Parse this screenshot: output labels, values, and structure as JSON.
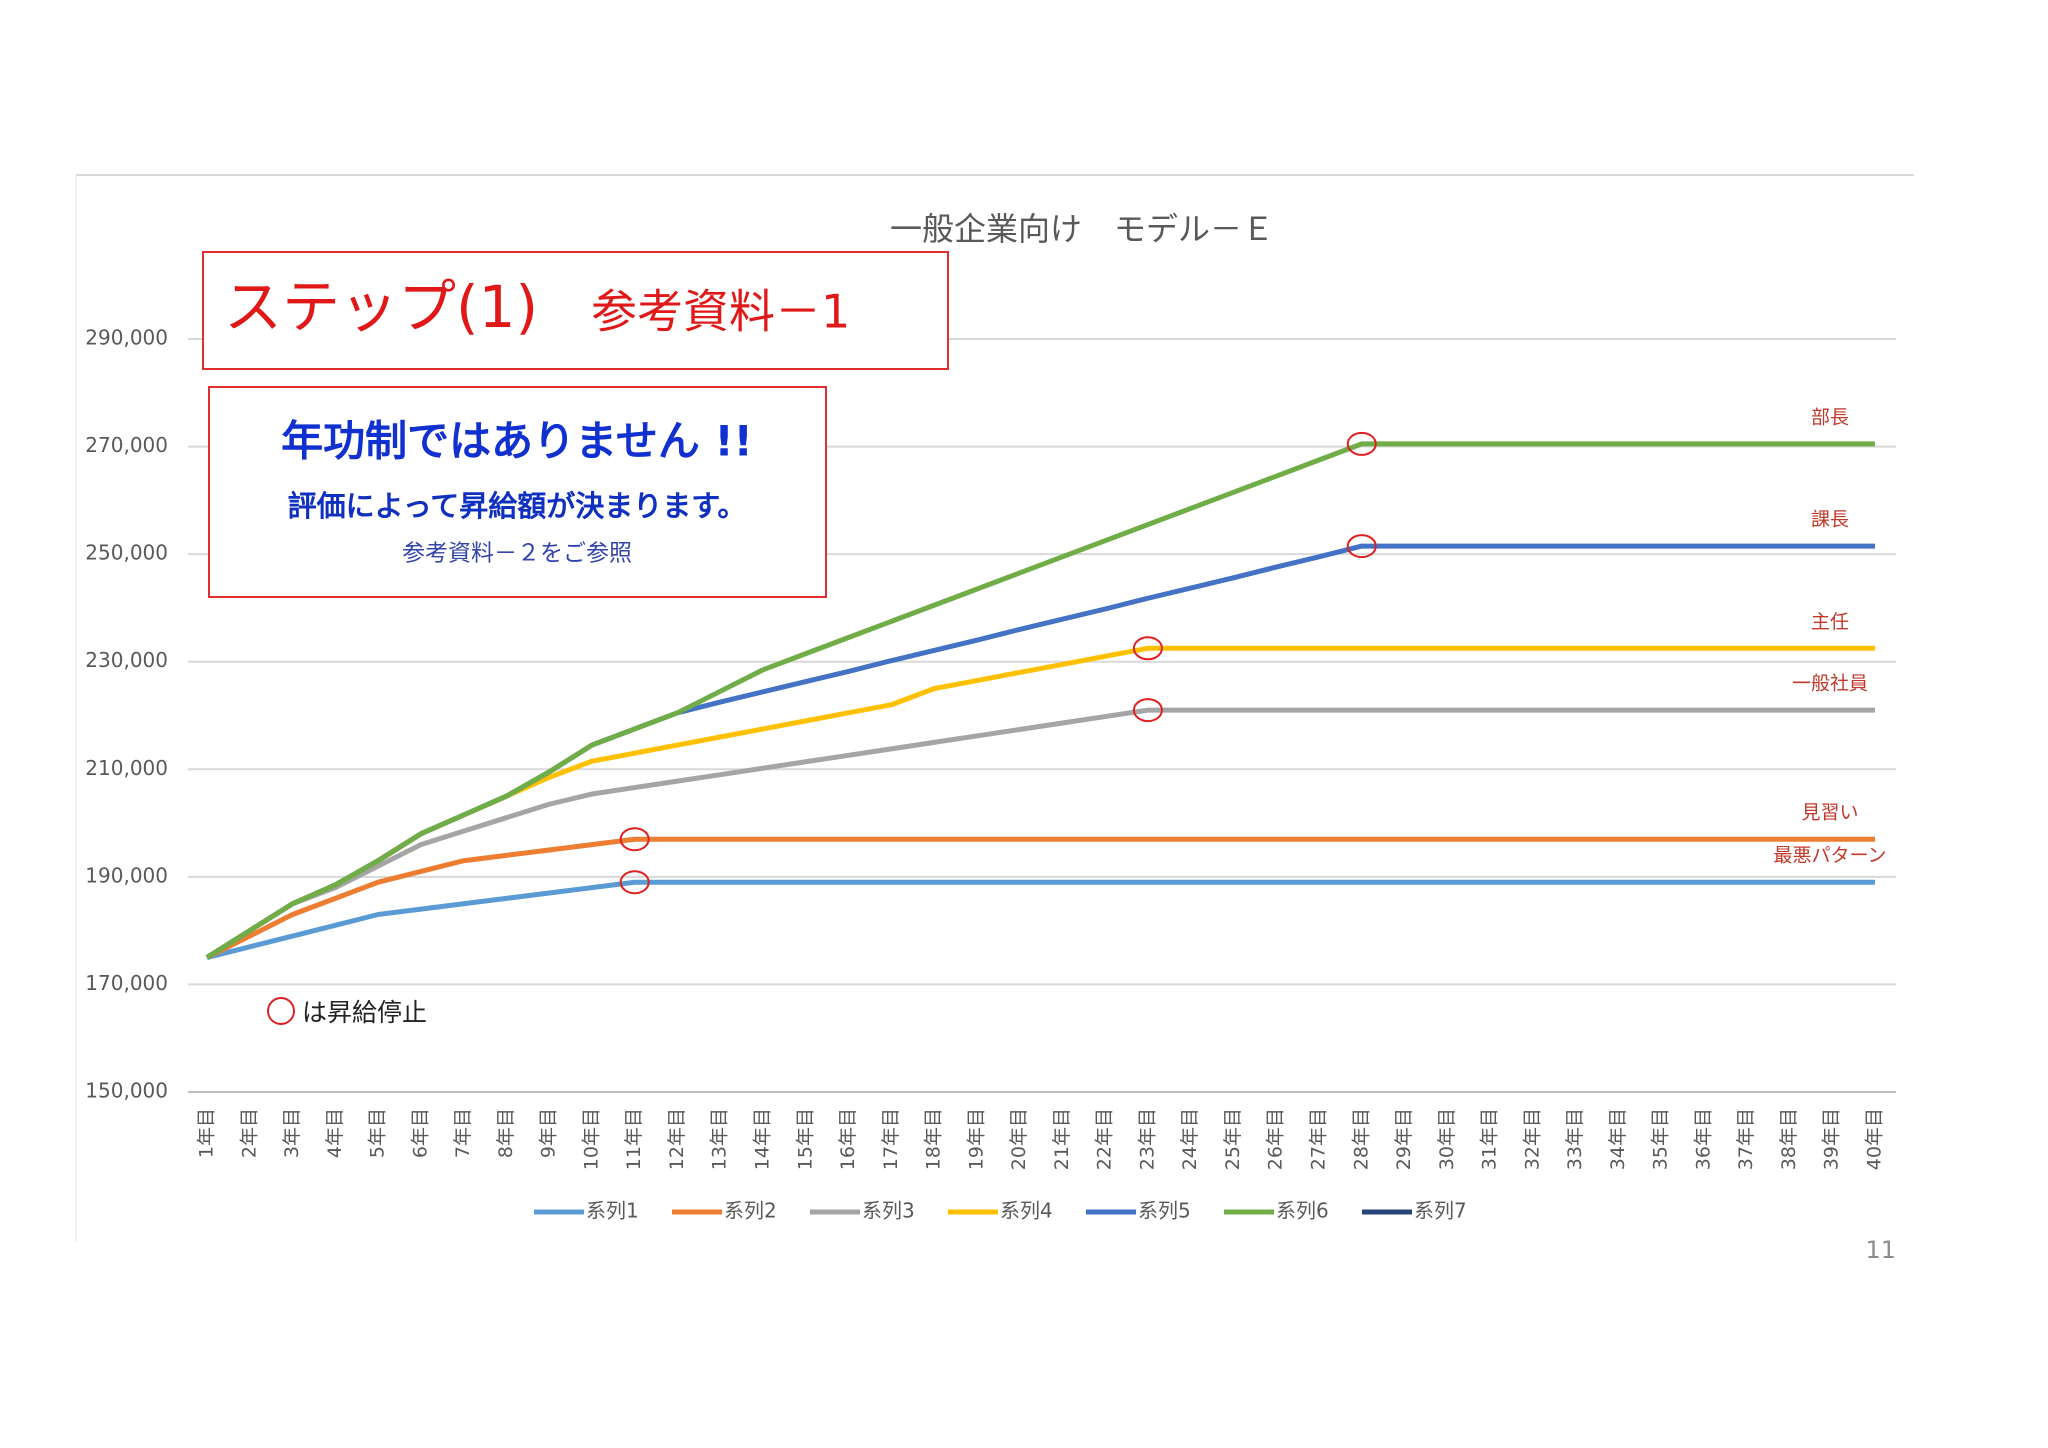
{
  "chart_data": {
    "type": "line",
    "title": "一般企業向け　モデル－Ｅ",
    "step_title": "ステップ(1)",
    "step_subtitle": "参考資料－1",
    "note_heading": "年功制ではありません !!",
    "note_text": "評価によって昇給額が決まります。",
    "note_reference": "参考資料－２をご参照",
    "marker_legend": "は昇給停止",
    "page_number": "11",
    "categories": [
      "1年目",
      "2年目",
      "3年目",
      "4年目",
      "5年目",
      "6年目",
      "7年目",
      "8年目",
      "9年目",
      "10年目",
      "11年目",
      "12年目",
      "13年目",
      "14年目",
      "15年目",
      "16年目",
      "17年目",
      "18年目",
      "19年目",
      "20年目",
      "21年目",
      "22年目",
      "23年目",
      "24年目",
      "25年目",
      "26年目",
      "27年目",
      "28年目",
      "29年目",
      "30年目",
      "31年目",
      "32年目",
      "33年目",
      "34年目",
      "35年目",
      "36年目",
      "37年目",
      "38年目",
      "39年目",
      "40年目"
    ],
    "ylim": [
      150000,
      290000
    ],
    "yticks": [
      {
        "value": 150000,
        "label": "150,000"
      },
      {
        "value": 170000,
        "label": "170,000"
      },
      {
        "value": 190000,
        "label": "190,000"
      },
      {
        "value": 210000,
        "label": "210,000"
      },
      {
        "value": 230000,
        "label": "230,000"
      },
      {
        "value": 250000,
        "label": "250,000"
      },
      {
        "value": 270000,
        "label": "270,000"
      },
      {
        "value": 290000,
        "label": "290,000"
      }
    ],
    "grid": true,
    "legend": "bottom",
    "series": [
      {
        "name": "系列1",
        "label": "最悪パターン",
        "color": "#5b9bd5",
        "values": [
          175000,
          177000,
          179000,
          181000,
          183000,
          184000,
          185000,
          186000,
          187000,
          188000,
          189000,
          189000,
          189000,
          189000,
          189000,
          189000,
          189000,
          189000,
          189000,
          189000,
          189000,
          189000,
          189000,
          189000,
          189000,
          189000,
          189000,
          189000,
          189000,
          189000,
          189000,
          189000,
          189000,
          189000,
          189000,
          189000,
          189000,
          189000,
          189000,
          189000
        ]
      },
      {
        "name": "系列2",
        "label": "見習い",
        "color": "#ed7d31",
        "values": [
          175000,
          179000,
          183000,
          186000,
          189000,
          191000,
          193000,
          194000,
          195000,
          196000,
          197000,
          197000,
          197000,
          197000,
          197000,
          197000,
          197000,
          197000,
          197000,
          197000,
          197000,
          197000,
          197000,
          197000,
          197000,
          197000,
          197000,
          197000,
          197000,
          197000,
          197000,
          197000,
          197000,
          197000,
          197000,
          197000,
          197000,
          197000,
          197000,
          197000
        ]
      },
      {
        "name": "系列3",
        "label": "一般社員",
        "color": "#a5a5a5",
        "values": [
          175000,
          180000,
          185000,
          188000,
          192000,
          196000,
          198500,
          201000,
          203500,
          205400,
          206600,
          207800,
          209000,
          210200,
          211400,
          212600,
          213800,
          215000,
          216200,
          217400,
          218600,
          219800,
          221000,
          221000,
          221000,
          221000,
          221000,
          221000,
          221000,
          221000,
          221000,
          221000,
          221000,
          221000,
          221000,
          221000,
          221000,
          221000,
          221000,
          221000
        ]
      },
      {
        "name": "系列4",
        "label": "主任",
        "color": "#ffc000",
        "values": [
          175000,
          180000,
          185000,
          188500,
          193000,
          198000,
          201500,
          205000,
          208500,
          211500,
          213000,
          214500,
          216000,
          217500,
          219000,
          220500,
          222000,
          225000,
          226500,
          228000,
          229500,
          231000,
          232500,
          232500,
          232500,
          232500,
          232500,
          232500,
          232500,
          232500,
          232500,
          232500,
          232500,
          232500,
          232500,
          232500,
          232500,
          232500,
          232500,
          232500
        ]
      },
      {
        "name": "系列5",
        "label": "課長",
        "color": "#4472c4",
        "values": [
          175000,
          180000,
          185000,
          188500,
          193000,
          198000,
          201500,
          205000,
          209500,
          214500,
          217500,
          220500,
          222500,
          224400,
          226300,
          228200,
          230200,
          232100,
          234000,
          236000,
          237900,
          239800,
          241800,
          243700,
          245600,
          247600,
          249500,
          251500,
          251500,
          251500,
          251500,
          251500,
          251500,
          251500,
          251500,
          251500,
          251500,
          251500,
          251500,
          251500
        ]
      },
      {
        "name": "系列6",
        "label": "部長",
        "color": "#70ad47",
        "values": [
          175000,
          180000,
          185000,
          188500,
          193000,
          198000,
          201500,
          205000,
          209500,
          214500,
          217500,
          220500,
          224500,
          228500,
          231500,
          234500,
          237500,
          240500,
          243500,
          246500,
          249500,
          252500,
          255500,
          258500,
          261500,
          264500,
          267500,
          270500,
          270500,
          270500,
          270500,
          270500,
          270500,
          270500,
          270500,
          270500,
          270500,
          270500,
          270500,
          270500
        ]
      },
      {
        "name": "系列7",
        "color": "#264478"
      }
    ]
  }
}
